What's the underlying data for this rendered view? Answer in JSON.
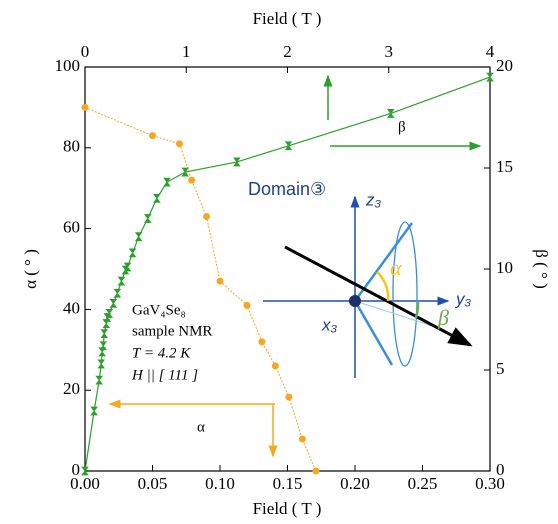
{
  "chart_data": {
    "type": "line",
    "x_label": "Field ( T )",
    "x2_label": "Field ( T )",
    "y_label": "α ( ° )",
    "y2_label": "β ( ° )",
    "xlim": [
      0,
      0.3
    ],
    "xticks": [
      {
        "value": 0,
        "label": "0.00"
      },
      {
        "value": 0.05,
        "label": "0.05"
      },
      {
        "value": 0.1,
        "label": "0.10"
      },
      {
        "value": 0.15,
        "label": "0.15"
      },
      {
        "value": 0.2,
        "label": "0.20"
      },
      {
        "value": 0.25,
        "label": "0.25"
      },
      {
        "value": 0.3,
        "label": "0.30"
      }
    ],
    "x2lim": [
      0,
      4
    ],
    "x2ticks": [
      0,
      1,
      2,
      3,
      4
    ],
    "ylim": [
      0,
      100
    ],
    "yticks": [
      0,
      20,
      40,
      60,
      80,
      100
    ],
    "y2lim": [
      0,
      20
    ],
    "y2ticks": [
      0,
      5,
      10,
      15,
      20
    ],
    "series": [
      {
        "name": "α",
        "color": "#f5a623",
        "xaxis": "x",
        "axis": "y",
        "x": [
          0,
          0.05,
          0.07,
          0.079,
          0.09,
          0.1,
          0.12,
          0.131,
          0.141,
          0.151,
          0.161,
          0.171
        ],
        "values": [
          90,
          83,
          81,
          72,
          63,
          47,
          41,
          32,
          26,
          18.3,
          7.9,
          0
        ]
      },
      {
        "name": "β",
        "color": "#2ca02c",
        "xaxis": "x2",
        "axis": "y2",
        "x": [
          0,
          0.09,
          0.14,
          0.16,
          0.17,
          0.18,
          0.19,
          0.21,
          0.22,
          0.24,
          0.28,
          0.32,
          0.36,
          0.4,
          0.42,
          0.47,
          0.53,
          0.62,
          0.71,
          0.81,
          0.99,
          1.5,
          2.01,
          3.02,
          4.0
        ],
        "values": [
          0,
          2.97,
          4.5,
          5.3,
          5.9,
          6.2,
          6.8,
          7.3,
          7.6,
          7.8,
          8.3,
          8.8,
          9.4,
          9.95,
          10.1,
          10.8,
          11.6,
          12.5,
          13.5,
          14.3,
          14.8,
          15.3,
          16.1,
          17.7,
          19.5
        ]
      }
    ],
    "annotations": [
      "GaV₄Se₈",
      "sample NMR",
      "T = 4.2 K",
      "H || [ 111 ]"
    ],
    "diagram": {
      "title": "Domain③",
      "z": "z₃",
      "y": "y₃",
      "x": "x₃"
    }
  }
}
